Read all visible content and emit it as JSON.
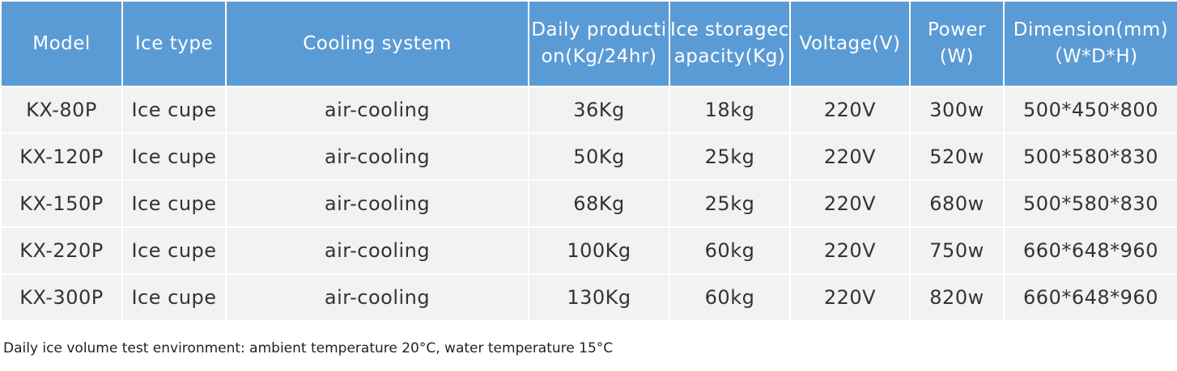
{
  "table": {
    "headers": [
      "Model",
      "Ice type",
      "Cooling system",
      "Daily production(Kg/24hr)",
      "Ice storagecapacity(Kg)",
      "Voltage(V)",
      "Power(W)",
      "Dimension(mm)（W*D*H)"
    ],
    "rows": [
      [
        "KX-80P",
        "Ice cupe",
        "air-cooling",
        "36Kg",
        "18kg",
        "220V",
        "300w",
        "500*450*800"
      ],
      [
        "KX-120P",
        "Ice cupe",
        "air-cooling",
        "50Kg",
        "25kg",
        "220V",
        "520w",
        "500*580*830"
      ],
      [
        "KX-150P",
        "Ice cupe",
        "air-cooling",
        "68Kg",
        "25kg",
        "220V",
        "680w",
        "500*580*830"
      ],
      [
        "KX-220P",
        "Ice cupe",
        "air-cooling",
        "100Kg",
        "60kg",
        "220V",
        "750w",
        "660*648*960"
      ],
      [
        "KX-300P",
        "Ice cupe",
        "air-cooling",
        "130Kg",
        "60kg",
        "220V",
        "820w",
        "660*648*960"
      ]
    ]
  },
  "footnote": "Daily ice volume test environment: ambient temperature 20°C, water temperature 15°C",
  "colors": {
    "header_bg": "#5b9bd5",
    "header_text": "#ffffff",
    "cell_bg": "#f2f2f2",
    "cell_text": "#333333"
  }
}
